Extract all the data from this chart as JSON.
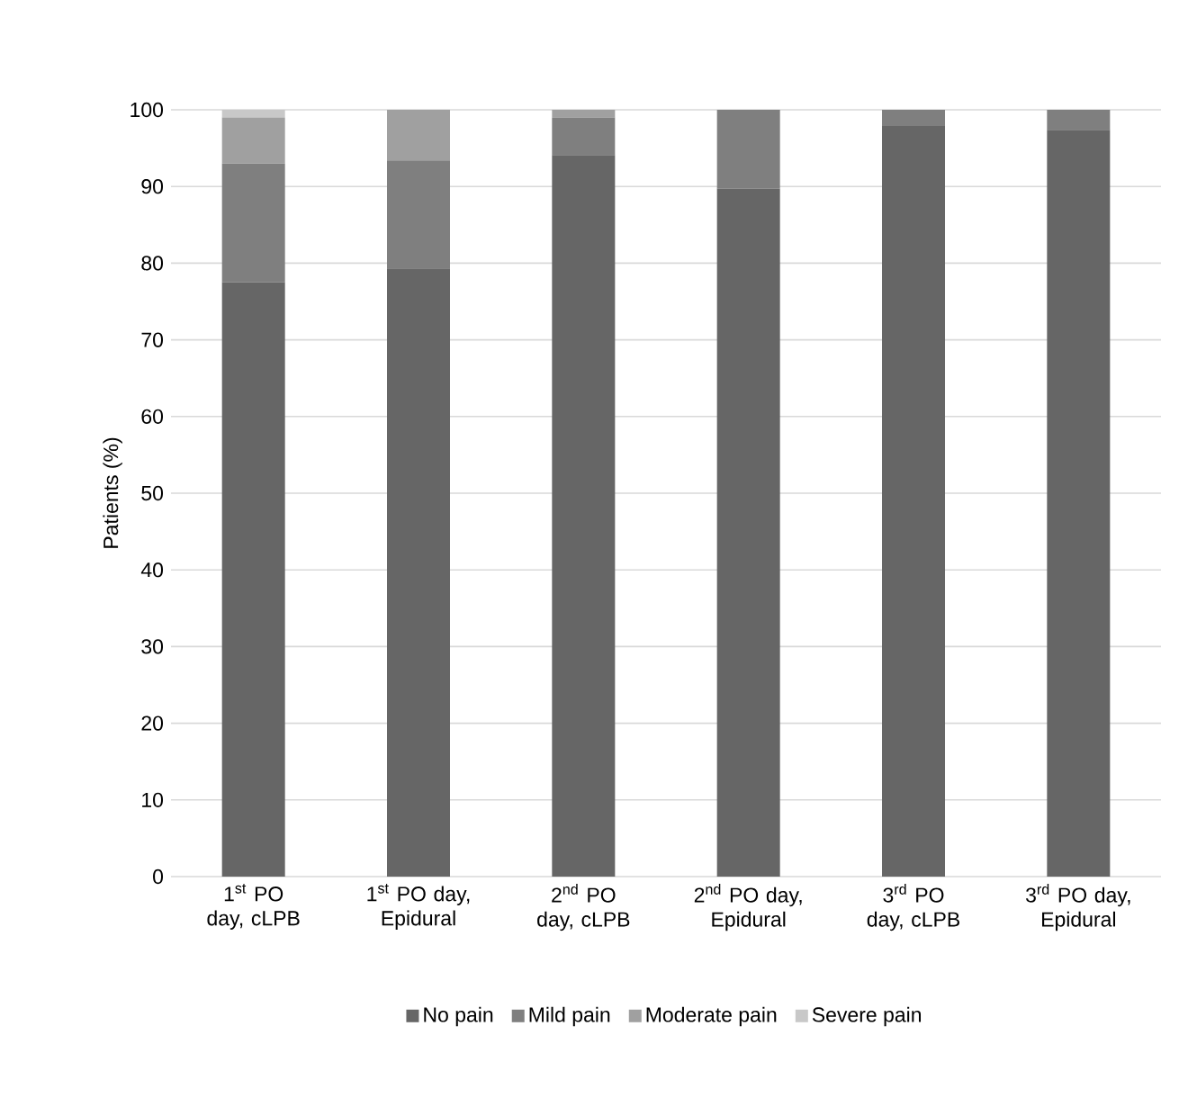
{
  "chart_data": {
    "type": "bar",
    "stacked": true,
    "ylabel": "Patients (%)",
    "ylim": [
      0,
      100
    ],
    "yticks": [
      0,
      10,
      20,
      30,
      40,
      50,
      60,
      70,
      80,
      90,
      100
    ],
    "grid": "y",
    "legend": "bottom",
    "categories": [
      "1$^{st}$ PO day, cLPB",
      "1$^{st}$ PO day, Epidural",
      "2$^{nd}$ PO day, cLPB",
      "2$^{nd}$ PO day, Epidural",
      "3$^{rd}$ PO day, cLPB",
      "3$^{rd}$ PO day, Epidural"
    ],
    "series": [
      {
        "name": "No pain",
        "color": "#666666",
        "values": [
          77.5,
          79.3,
          94.1,
          89.7,
          97.9,
          97.4
        ]
      },
      {
        "name": "Mild pain",
        "color": "#7f7f7f",
        "values": [
          15.5,
          14.1,
          4.9,
          10.3,
          2.1,
          2.6
        ]
      },
      {
        "name": "Moderate pain",
        "color": "#a0a0a0",
        "values": [
          6,
          6.6,
          1,
          null,
          null,
          null
        ]
      },
      {
        "name": "Severe pain",
        "color": "#c8c8c8",
        "values": [
          1,
          null,
          null,
          null,
          null,
          null
        ]
      }
    ]
  }
}
